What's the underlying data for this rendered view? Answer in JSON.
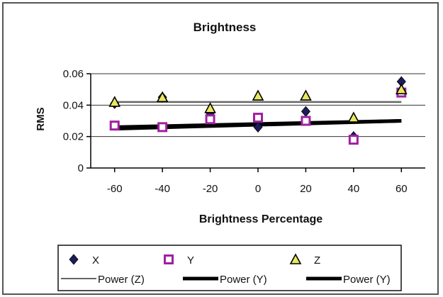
{
  "chart_data": {
    "type": "scatter",
    "title": "Brightness",
    "xlabel": "Brightness Percentage",
    "ylabel": "RMS",
    "xlim": [
      -70,
      70
    ],
    "ylim": [
      0,
      0.06
    ],
    "x_ticks": [
      -60,
      -40,
      -20,
      0,
      20,
      40,
      60
    ],
    "x_tick_labels": [
      "-60",
      "-40",
      "-20",
      "0",
      "20",
      "40",
      "60"
    ],
    "y_ticks": [
      0,
      0.02,
      0.04,
      0.06
    ],
    "y_tick_labels": [
      "0",
      "0.02",
      "0.04",
      "0.06"
    ],
    "grid": "horizontal",
    "legend_position": "bottom",
    "series": [
      {
        "name": "X",
        "marker": "diamond",
        "color": "#1c1c5a",
        "x": [
          -60,
          -40,
          -20,
          0,
          20,
          40,
          60
        ],
        "y": [
          0.041,
          0.045,
          0.035,
          0.026,
          0.036,
          0.02,
          0.055
        ]
      },
      {
        "name": "Y",
        "marker": "square",
        "color": "#a020a0",
        "x": [
          -60,
          -40,
          -20,
          0,
          20,
          40,
          60
        ],
        "y": [
          0.027,
          0.026,
          0.031,
          0.032,
          0.03,
          0.018,
          0.048
        ]
      },
      {
        "name": "Z",
        "marker": "triangle",
        "color": "#e8e860",
        "x": [
          -60,
          -40,
          -20,
          0,
          20,
          40,
          60
        ],
        "y": [
          0.042,
          0.045,
          0.038,
          0.046,
          0.046,
          0.032,
          0.05
        ]
      }
    ],
    "trendlines": [
      {
        "name": "Power (Z)",
        "weight": "thin",
        "color": "#666666",
        "x": [
          -60,
          60
        ],
        "y": [
          0.042,
          0.042
        ]
      },
      {
        "name": "Power (Y)",
        "weight": "thick",
        "color": "#000000",
        "x": [
          -60,
          60
        ],
        "y": [
          0.025,
          0.03
        ]
      },
      {
        "name": "Power (Y)",
        "weight": "thick",
        "color": "#000000",
        "x": [
          -60,
          60
        ],
        "y": [
          0.026,
          0.03
        ]
      }
    ]
  }
}
